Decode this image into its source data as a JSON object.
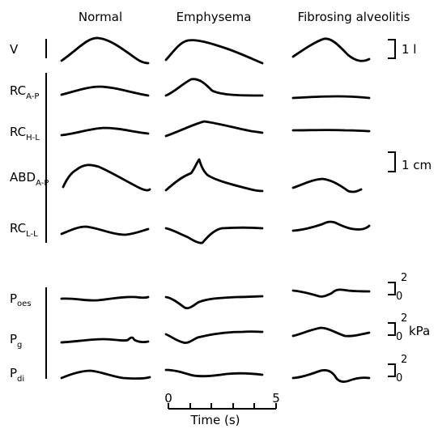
{
  "columns": [
    "Normal",
    "Emphysema",
    "Fibrosing alveolitis"
  ],
  "rows": [
    {
      "key": "V",
      "label": "V",
      "sub": ""
    },
    {
      "key": "RC_AP",
      "label": "RC",
      "sub": "A-P"
    },
    {
      "key": "RC_HL",
      "label": "RC",
      "sub": "H-L"
    },
    {
      "key": "ABD_AP",
      "label": "ABD",
      "sub": "A-P"
    },
    {
      "key": "RC_LL",
      "label": "RC",
      "sub": "L-L"
    },
    {
      "key": "Poes",
      "label": "P",
      "sub": "oes"
    },
    {
      "key": "Pg",
      "label": "P",
      "sub": "g"
    },
    {
      "key": "Pdi",
      "label": "P",
      "sub": "di"
    }
  ],
  "scales": {
    "volume": "1 l",
    "displacement": "1 cm",
    "pressure_unit": "kPa",
    "pressure_top": "2",
    "pressure_bottom": "0"
  },
  "time_axis": {
    "label": "Time (s)",
    "start": "0",
    "end": "5"
  }
}
